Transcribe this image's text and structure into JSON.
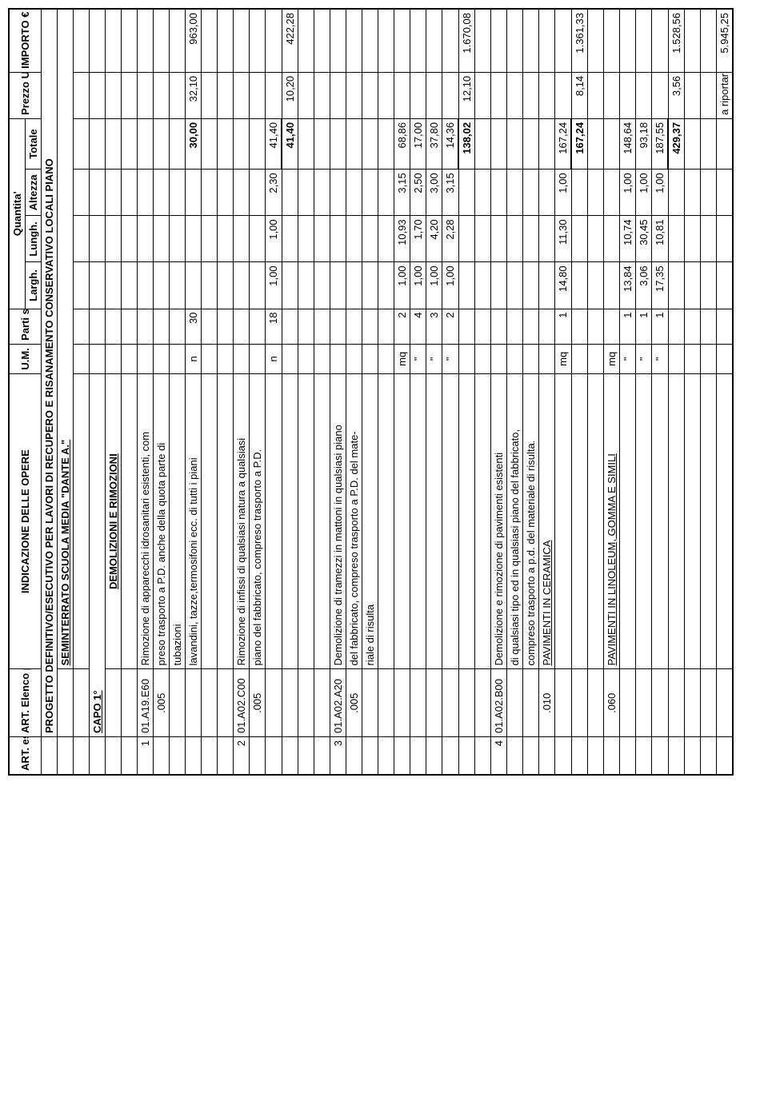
{
  "headers": {
    "art_estim": "ART. estim.",
    "art_prezzi": "ART. Elenco prezzi",
    "indicazione": "INDICAZIONE DELLE OPERE",
    "um": "U.M.",
    "parti": "Parti simili",
    "quantita": "Quantita'",
    "largh": "Largh.",
    "lungh": "Lungh.",
    "altezza": "Altezza",
    "totale": "Totale",
    "prezzo": "Prezzo U.M. €",
    "importo": "IMPORTO €"
  },
  "project_title": "PROGETTO DEFINITIVO/ESECUTIVO PER LAVORI DI RECUPERO E RISANAMENTO CONSERVATIVO LOCALI PIANO",
  "project_subtitle": "SEMINTERRATO SCUOLA MEDIA \"DANTE A.\"",
  "capo": "CAPO 1°",
  "section1": "DEMOLIZIONI E RIMOZIONI",
  "items": [
    {
      "art_estim": "1",
      "art_prezzi": "01.A19.E60",
      "sub_art": ".005",
      "desc_lines": [
        "Rimozione di apparecchi idrosanitari esistenti, com",
        "preso trasporto a P.D. anche della quota parte di",
        "tubazioni",
        "lavandini, tazze,termosifoni ecc. di tutti i piani"
      ],
      "rows": [
        {
          "um": "n",
          "parti": "30",
          "totale": "30,00",
          "prezzo": "32,10",
          "importo": "963,00",
          "bold_totale": true
        }
      ]
    },
    {
      "art_estim": "2",
      "art_prezzi": "01.A02.C00",
      "sub_art": ".005",
      "desc_lines": [
        "Rimozione di infissi di qualsiasi natura a qualsiasi",
        "piano del fabbricato, compreso trasporto a P.D."
      ],
      "rows": [
        {
          "um": "n",
          "parti": "18",
          "largh": "1,00",
          "lungh": "1,00",
          "altezza": "2,30",
          "totale": "41,40"
        },
        {
          "totale": "41,40",
          "prezzo": "10,20",
          "importo": "422,28",
          "bold_totale": true,
          "underline_totale": true
        }
      ]
    },
    {
      "art_estim": "3",
      "art_prezzi": "01.A02.A20",
      "sub_art": ".005",
      "desc_lines": [
        "Demolizione di tramezzi in mattoni in qualsiasi piano",
        "del fabbricato, compreso trasporto a P.D. del mate-",
        "riale di risulta"
      ],
      "rows": [
        {
          "um": "mq",
          "parti": "2",
          "largh": "1,00",
          "lungh": "10,93",
          "altezza": "3,15",
          "totale": "68,86"
        },
        {
          "um": "\"",
          "parti": "4",
          "largh": "1,00",
          "lungh": "1,70",
          "altezza": "2,50",
          "totale": "17,00"
        },
        {
          "um": "\"",
          "parti": "3",
          "largh": "1,00",
          "lungh": "4,20",
          "altezza": "3,00",
          "totale": "37,80"
        },
        {
          "um": "\"",
          "parti": "2",
          "largh": "1,00",
          "lungh": "2,28",
          "altezza": "3,15",
          "totale": "14,36"
        },
        {
          "totale": "138,02",
          "prezzo": "12,10",
          "importo": "1.670,08",
          "bold_totale": true,
          "underline_totale": true
        }
      ]
    },
    {
      "art_estim": "4",
      "art_prezzi": "01.A02.B00",
      "sub_arts": [
        {
          "code": ".010",
          "label": "PAVIMENTI IN CERAMICA"
        },
        {
          "code": ".060",
          "label": "PAVIMENTI IN LINOLEUM, GOMMA E SIMILI"
        }
      ],
      "desc_lines": [
        "Demolizione e rimozione di pavimenti esistenti",
        "di qualsiasi tipo ed in qualsiasi piano del fabbricato,",
        "compreso trasporto a p.d. del materiale di risulta."
      ],
      "rows_010": [
        {
          "um": "mq",
          "parti": "1",
          "largh": "14,80",
          "lungh": "11,30",
          "altezza": "1,00",
          "totale": "167,24"
        },
        {
          "totale": "167,24",
          "prezzo": "8,14",
          "importo": "1.361,33",
          "bold_totale": true,
          "underline_totale": true
        }
      ],
      "rows_060": [
        {
          "um": "mq"
        },
        {
          "um": "\"",
          "parti": "1",
          "largh": "13,84",
          "lungh": "10,74",
          "altezza": "1,00",
          "totale": "148,64"
        },
        {
          "um": "\"",
          "parti": "1",
          "largh": "3,06",
          "lungh": "30,45",
          "altezza": "1,00",
          "totale": "93,18"
        },
        {
          "um": "\"",
          "parti": "1",
          "largh": "17,35",
          "lungh": "10,81",
          "altezza": "1,00",
          "totale": "187,55"
        },
        {
          "totale": "429,37",
          "prezzo": "3,56",
          "importo": "1.528,56",
          "bold_totale": true,
          "underline_totale": true
        }
      ]
    }
  ],
  "footer": {
    "label": "a riportarsi",
    "total": "5.945,25"
  }
}
